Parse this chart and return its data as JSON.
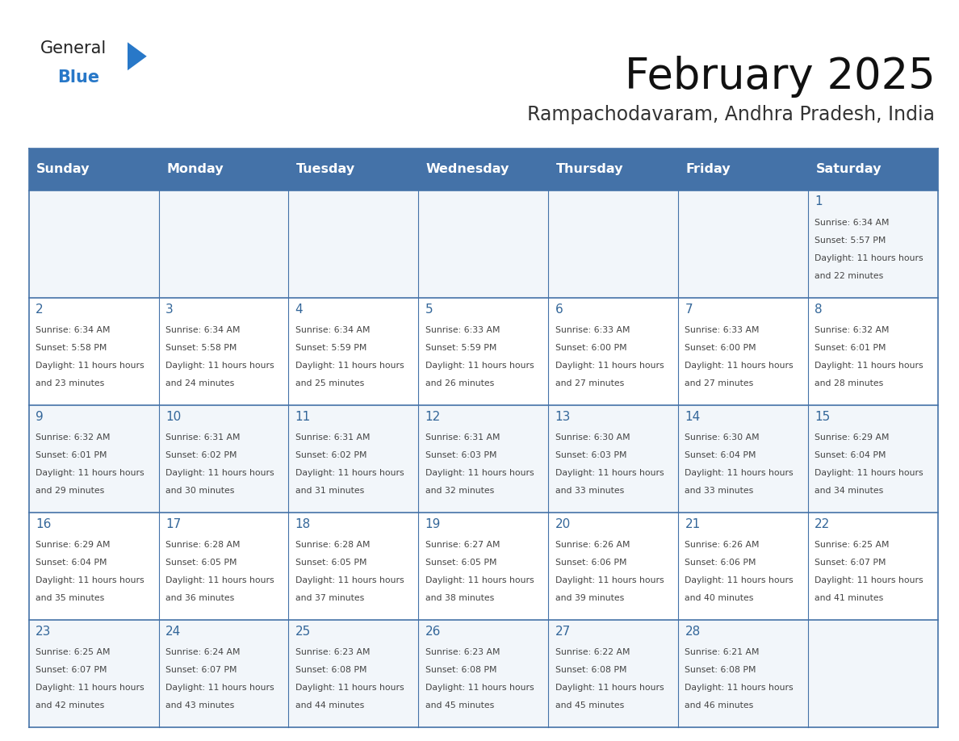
{
  "title": "February 2025",
  "subtitle": "Rampachodavaram, Andhra Pradesh, India",
  "days_of_week": [
    "Sunday",
    "Monday",
    "Tuesday",
    "Wednesday",
    "Thursday",
    "Friday",
    "Saturday"
  ],
  "header_bg": "#4472a8",
  "header_text": "#ffffff",
  "line_color": "#4472a8",
  "text_color": "#444444",
  "day_num_color": "#336699",
  "calendar_data": [
    [
      null,
      null,
      null,
      null,
      null,
      null,
      {
        "day": 1,
        "sunrise": "6:34 AM",
        "sunset": "5:57 PM",
        "daylight": "11 hours and 22 minutes"
      }
    ],
    [
      {
        "day": 2,
        "sunrise": "6:34 AM",
        "sunset": "5:58 PM",
        "daylight": "11 hours and 23 minutes"
      },
      {
        "day": 3,
        "sunrise": "6:34 AM",
        "sunset": "5:58 PM",
        "daylight": "11 hours and 24 minutes"
      },
      {
        "day": 4,
        "sunrise": "6:34 AM",
        "sunset": "5:59 PM",
        "daylight": "11 hours and 25 minutes"
      },
      {
        "day": 5,
        "sunrise": "6:33 AM",
        "sunset": "5:59 PM",
        "daylight": "11 hours and 26 minutes"
      },
      {
        "day": 6,
        "sunrise": "6:33 AM",
        "sunset": "6:00 PM",
        "daylight": "11 hours and 27 minutes"
      },
      {
        "day": 7,
        "sunrise": "6:33 AM",
        "sunset": "6:00 PM",
        "daylight": "11 hours and 27 minutes"
      },
      {
        "day": 8,
        "sunrise": "6:32 AM",
        "sunset": "6:01 PM",
        "daylight": "11 hours and 28 minutes"
      }
    ],
    [
      {
        "day": 9,
        "sunrise": "6:32 AM",
        "sunset": "6:01 PM",
        "daylight": "11 hours and 29 minutes"
      },
      {
        "day": 10,
        "sunrise": "6:31 AM",
        "sunset": "6:02 PM",
        "daylight": "11 hours and 30 minutes"
      },
      {
        "day": 11,
        "sunrise": "6:31 AM",
        "sunset": "6:02 PM",
        "daylight": "11 hours and 31 minutes"
      },
      {
        "day": 12,
        "sunrise": "6:31 AM",
        "sunset": "6:03 PM",
        "daylight": "11 hours and 32 minutes"
      },
      {
        "day": 13,
        "sunrise": "6:30 AM",
        "sunset": "6:03 PM",
        "daylight": "11 hours and 33 minutes"
      },
      {
        "day": 14,
        "sunrise": "6:30 AM",
        "sunset": "6:04 PM",
        "daylight": "11 hours and 33 minutes"
      },
      {
        "day": 15,
        "sunrise": "6:29 AM",
        "sunset": "6:04 PM",
        "daylight": "11 hours and 34 minutes"
      }
    ],
    [
      {
        "day": 16,
        "sunrise": "6:29 AM",
        "sunset": "6:04 PM",
        "daylight": "11 hours and 35 minutes"
      },
      {
        "day": 17,
        "sunrise": "6:28 AM",
        "sunset": "6:05 PM",
        "daylight": "11 hours and 36 minutes"
      },
      {
        "day": 18,
        "sunrise": "6:28 AM",
        "sunset": "6:05 PM",
        "daylight": "11 hours and 37 minutes"
      },
      {
        "day": 19,
        "sunrise": "6:27 AM",
        "sunset": "6:05 PM",
        "daylight": "11 hours and 38 minutes"
      },
      {
        "day": 20,
        "sunrise": "6:26 AM",
        "sunset": "6:06 PM",
        "daylight": "11 hours and 39 minutes"
      },
      {
        "day": 21,
        "sunrise": "6:26 AM",
        "sunset": "6:06 PM",
        "daylight": "11 hours and 40 minutes"
      },
      {
        "day": 22,
        "sunrise": "6:25 AM",
        "sunset": "6:07 PM",
        "daylight": "11 hours and 41 minutes"
      }
    ],
    [
      {
        "day": 23,
        "sunrise": "6:25 AM",
        "sunset": "6:07 PM",
        "daylight": "11 hours and 42 minutes"
      },
      {
        "day": 24,
        "sunrise": "6:24 AM",
        "sunset": "6:07 PM",
        "daylight": "11 hours and 43 minutes"
      },
      {
        "day": 25,
        "sunrise": "6:23 AM",
        "sunset": "6:08 PM",
        "daylight": "11 hours and 44 minutes"
      },
      {
        "day": 26,
        "sunrise": "6:23 AM",
        "sunset": "6:08 PM",
        "daylight": "11 hours and 45 minutes"
      },
      {
        "day": 27,
        "sunrise": "6:22 AM",
        "sunset": "6:08 PM",
        "daylight": "11 hours and 45 minutes"
      },
      {
        "day": 28,
        "sunrise": "6:21 AM",
        "sunset": "6:08 PM",
        "daylight": "11 hours and 46 minutes"
      },
      null
    ]
  ],
  "logo_general_color": "#222222",
  "logo_blue_color": "#2878c8",
  "logo_triangle_color": "#2878c8"
}
